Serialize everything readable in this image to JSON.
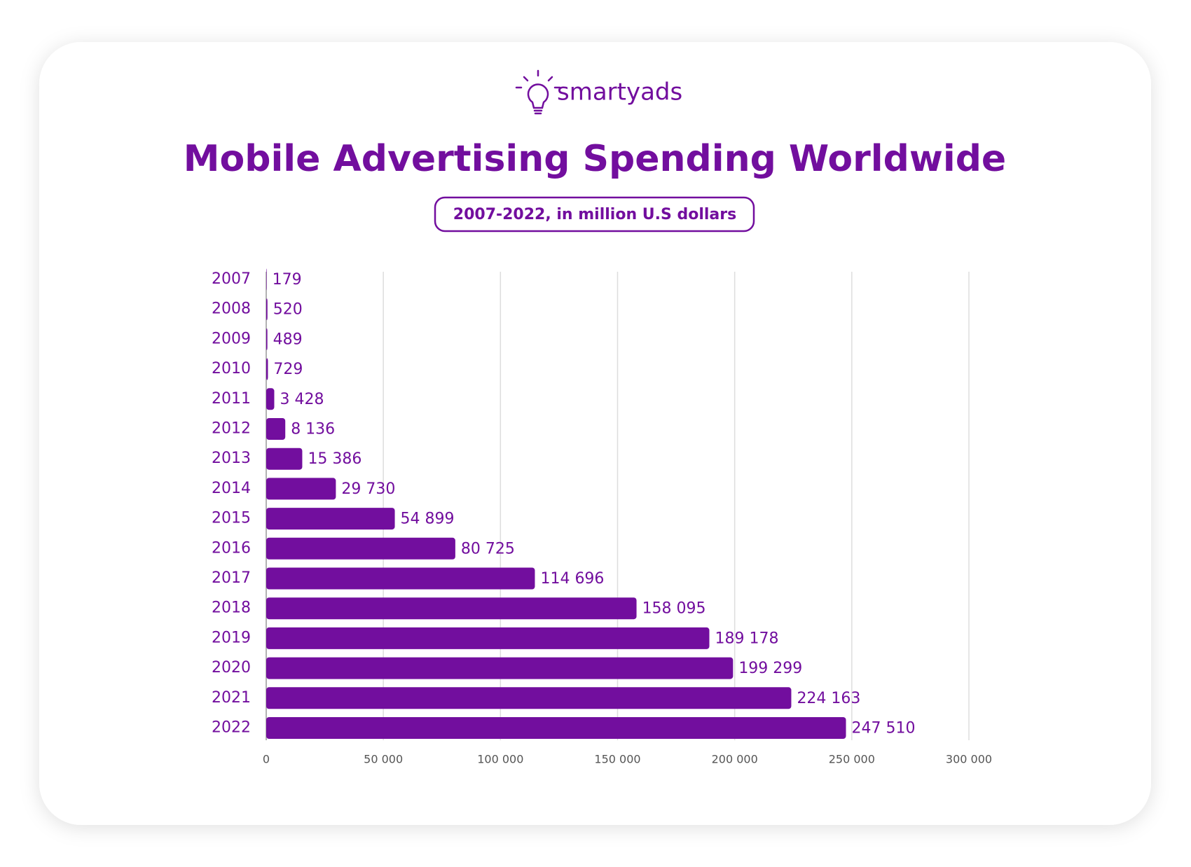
{
  "logo": "smartyads",
  "chart_data": {
    "type": "bar",
    "orientation": "horizontal",
    "title": "Mobile Advertising Spending Worldwide",
    "subtitle": "2007-2022, in million U.S dollars",
    "categories": [
      "2007",
      "2008",
      "2009",
      "2010",
      "2011",
      "2012",
      "2013",
      "2014",
      "2015",
      "2016",
      "2017",
      "2018",
      "2019",
      "2020",
      "2021",
      "2022"
    ],
    "values": [
      179,
      520,
      489,
      729,
      3428,
      8136,
      15386,
      29730,
      54899,
      80725,
      114696,
      158095,
      189178,
      199299,
      224163,
      247510
    ],
    "value_labels": [
      "179",
      "520",
      "489",
      "729",
      "3 428",
      "8 136",
      "15 386",
      "29 730",
      "54 899",
      "80 725",
      "114 696",
      "158 095",
      "189 178",
      "199 299",
      "224 163",
      "247 510"
    ],
    "color": "#720e9e",
    "xlim": [
      0,
      300000
    ],
    "xticks": [
      0,
      {
        "value": 50000,
        "label": "50 000"
      },
      {
        "value": 100000,
        "label": "100 000"
      },
      {
        "value": 150000,
        "label": "150 000"
      },
      {
        "value": 200000,
        "label": "200 000"
      },
      {
        "value": 250000,
        "label": "250 000"
      },
      {
        "value": 300000,
        "label": "300 000"
      }
    ],
    "grid": true
  }
}
